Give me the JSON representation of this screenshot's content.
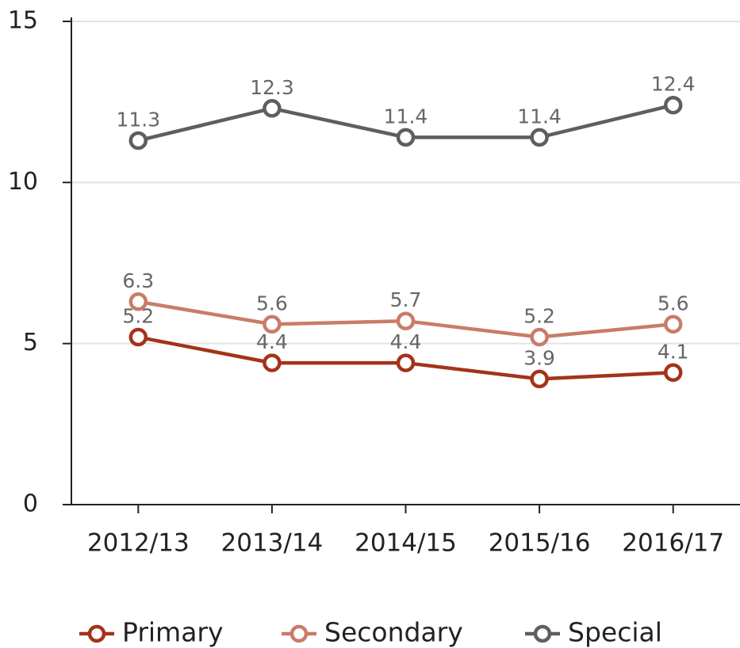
{
  "chart_data": {
    "type": "line",
    "categories": [
      "2012/13",
      "2013/14",
      "2014/15",
      "2015/16",
      "2016/17"
    ],
    "series": [
      {
        "name": "Primary",
        "color": "#a3331a",
        "values": [
          5.2,
          4.4,
          4.4,
          3.9,
          4.1
        ]
      },
      {
        "name": "Secondary",
        "color": "#c87c68",
        "values": [
          6.3,
          5.6,
          5.7,
          5.2,
          5.6
        ]
      },
      {
        "name": "Special",
        "color": "#5e5e5e",
        "values": [
          11.3,
          12.3,
          11.4,
          11.4,
          12.4
        ]
      }
    ],
    "ylim": [
      0,
      15
    ],
    "yticks": [
      0,
      5,
      10,
      15
    ],
    "grid": true,
    "legend": "bottom"
  }
}
